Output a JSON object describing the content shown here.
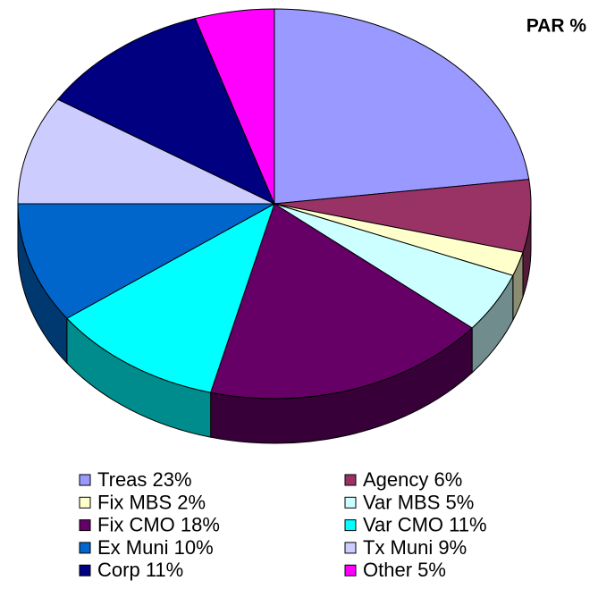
{
  "chart_data": {
    "type": "pie",
    "title": "PAR %",
    "categories": [
      "Treas",
      "Agency",
      "Fix MBS",
      "Var MBS",
      "Fix CMO",
      "Var CMO",
      "Ex Muni",
      "Tx Muni",
      "Corp",
      "Other"
    ],
    "values": [
      23,
      6,
      2,
      5,
      18,
      11,
      10,
      9,
      11,
      5
    ],
    "value_labels": [
      "23%",
      "6%",
      "2%",
      "5%",
      "18%",
      "11%",
      "10%",
      "9%",
      "11%",
      "5%"
    ],
    "colors": [
      "#9999ff",
      "#993366",
      "#ffffcc",
      "#ccffff",
      "#660066",
      "#00ffff",
      "#0066cc",
      "#ccccff",
      "#000080",
      "#ff00ff"
    ]
  }
}
